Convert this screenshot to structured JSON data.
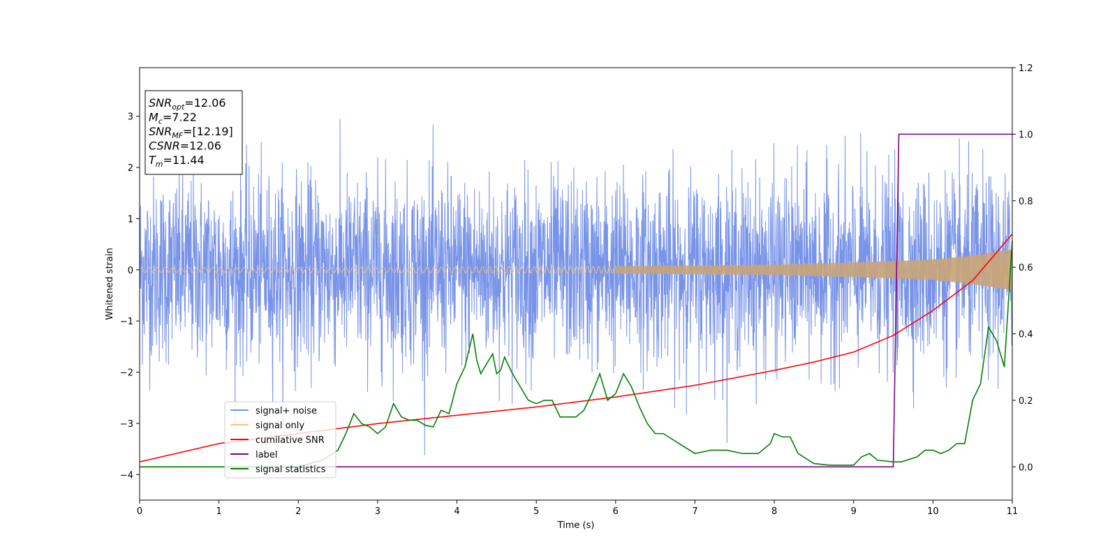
{
  "chart_data": {
    "type": "line",
    "xlabel": "Time (s)",
    "ylabel": "Whitened strain",
    "xlim": [
      0,
      11
    ],
    "ylim": [
      -4.5,
      3.95
    ],
    "y2lim": [
      -0.1,
      1.2
    ],
    "xticks": [
      "0",
      "1",
      "2",
      "3",
      "4",
      "5",
      "6",
      "7",
      "8",
      "9",
      "10",
      "11"
    ],
    "yticks": [
      "−4",
      "−3",
      "−2",
      "−1",
      "0",
      "1",
      "2",
      "3"
    ],
    "y2ticks": [
      "0.0",
      "0.2",
      "0.4",
      "0.6",
      "0.8",
      "1.0",
      "1.2"
    ],
    "grid": false,
    "legend_placement": "lower-left",
    "stats_box": [
      {
        "base": "SNR",
        "sub": "opt",
        "rest": "=12.06"
      },
      {
        "base": "M",
        "sub": "c",
        "rest": "=7.22"
      },
      {
        "base": "SNR",
        "sub": "MF",
        "rest": "=[12.19]"
      },
      {
        "base": "CSNR",
        "sub": "",
        "rest": "=12.06"
      },
      {
        "base": "T",
        "sub": "m",
        "rest": "=11.44"
      }
    ],
    "series": [
      {
        "name": "signal+ noise",
        "axis": "left",
        "color": "#7893e8",
        "description_values": {
          "noise_std": 0.9,
          "typical_range": [
            -2.8,
            3.0
          ]
        }
      },
      {
        "name": "signal only",
        "axis": "left",
        "color": "#f5c778",
        "amplitude_envelope": {
          "x": [
            0,
            2,
            4,
            6,
            8,
            9,
            10,
            10.5,
            11
          ],
          "amp": [
            0.05,
            0.05,
            0.06,
            0.07,
            0.1,
            0.14,
            0.2,
            0.28,
            0.4
          ]
        }
      },
      {
        "name": "cumilative SNR",
        "axis": "right",
        "color": "#ff0000",
        "x": [
          0,
          1,
          2,
          3,
          4,
          5,
          6,
          7,
          8,
          8.5,
          9,
          9.5,
          10,
          10.5,
          11
        ],
        "y": [
          0.015,
          0.07,
          0.1,
          0.13,
          0.155,
          0.18,
          0.21,
          0.245,
          0.29,
          0.315,
          0.345,
          0.395,
          0.47,
          0.56,
          0.7
        ]
      },
      {
        "name": "label",
        "axis": "right",
        "color": "#800080",
        "x": [
          0,
          9.5,
          9.57,
          11
        ],
        "y": [
          0.0,
          0.0,
          1.0,
          1.0
        ]
      },
      {
        "name": "signal statistics",
        "axis": "right",
        "color": "#008000",
        "x": [
          0,
          2.0,
          2.3,
          2.5,
          2.6,
          2.7,
          2.8,
          2.9,
          3.0,
          3.1,
          3.2,
          3.3,
          3.4,
          3.5,
          3.6,
          3.7,
          3.8,
          3.9,
          4.0,
          4.1,
          4.2,
          4.25,
          4.3,
          4.45,
          4.5,
          4.55,
          4.6,
          4.7,
          4.8,
          4.9,
          5.0,
          5.1,
          5.2,
          5.3,
          5.4,
          5.5,
          5.6,
          5.7,
          5.8,
          5.9,
          6.0,
          6.1,
          6.2,
          6.3,
          6.4,
          6.5,
          6.6,
          6.8,
          7.0,
          7.2,
          7.4,
          7.6,
          7.8,
          7.95,
          8.0,
          8.1,
          8.2,
          8.3,
          8.5,
          8.7,
          9.0,
          9.1,
          9.2,
          9.3,
          9.5,
          9.6,
          9.8,
          9.9,
          10.0,
          10.1,
          10.2,
          10.3,
          10.4,
          10.5,
          10.6,
          10.7,
          10.8,
          10.9,
          11.0
        ],
        "y": [
          0.0,
          0.0,
          0.02,
          0.05,
          0.1,
          0.16,
          0.13,
          0.12,
          0.1,
          0.12,
          0.19,
          0.15,
          0.14,
          0.14,
          0.125,
          0.12,
          0.17,
          0.16,
          0.25,
          0.3,
          0.4,
          0.32,
          0.28,
          0.34,
          0.28,
          0.29,
          0.33,
          0.28,
          0.24,
          0.2,
          0.19,
          0.2,
          0.2,
          0.15,
          0.15,
          0.15,
          0.17,
          0.22,
          0.28,
          0.2,
          0.22,
          0.28,
          0.24,
          0.18,
          0.13,
          0.1,
          0.1,
          0.07,
          0.04,
          0.05,
          0.05,
          0.04,
          0.04,
          0.07,
          0.1,
          0.09,
          0.09,
          0.04,
          0.01,
          0.005,
          0.005,
          0.03,
          0.04,
          0.02,
          0.015,
          0.015,
          0.03,
          0.05,
          0.05,
          0.04,
          0.05,
          0.07,
          0.07,
          0.2,
          0.25,
          0.42,
          0.38,
          0.3,
          0.68
        ]
      }
    ]
  }
}
